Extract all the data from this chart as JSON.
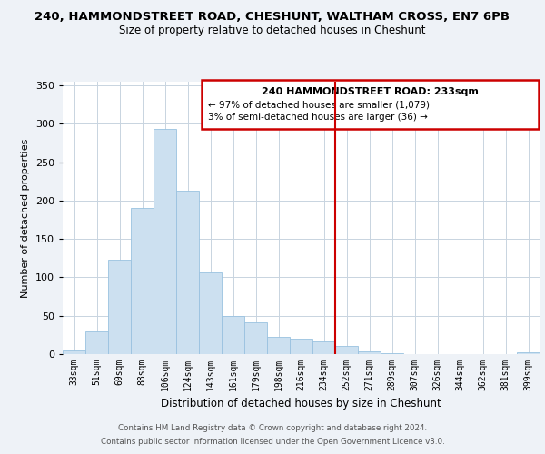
{
  "title": "240, HAMMONDSTREET ROAD, CHESHUNT, WALTHAM CROSS, EN7 6PB",
  "subtitle": "Size of property relative to detached houses in Cheshunt",
  "xlabel": "Distribution of detached houses by size in Cheshunt",
  "ylabel": "Number of detached properties",
  "bar_labels": [
    "33sqm",
    "51sqm",
    "69sqm",
    "88sqm",
    "106sqm",
    "124sqm",
    "143sqm",
    "161sqm",
    "179sqm",
    "198sqm",
    "216sqm",
    "234sqm",
    "252sqm",
    "271sqm",
    "289sqm",
    "307sqm",
    "326sqm",
    "344sqm",
    "362sqm",
    "381sqm",
    "399sqm"
  ],
  "bar_values": [
    5,
    29,
    123,
    190,
    293,
    213,
    106,
    50,
    42,
    23,
    20,
    16,
    11,
    3,
    1,
    0,
    0,
    0,
    0,
    0,
    2
  ],
  "bar_color": "#cce0f0",
  "bar_edge_color": "#99c2e0",
  "vline_x": 11.5,
  "vline_color": "#cc0000",
  "ylim": [
    0,
    355
  ],
  "yticks": [
    0,
    50,
    100,
    150,
    200,
    250,
    300,
    350
  ],
  "annotation_title": "240 HAMMONDSTREET ROAD: 233sqm",
  "annotation_line1": "← 97% of detached houses are smaller (1,079)",
  "annotation_line2": "3% of semi-detached houses are larger (36) →",
  "footer1": "Contains HM Land Registry data © Crown copyright and database right 2024.",
  "footer2": "Contains public sector information licensed under the Open Government Licence v3.0.",
  "background_color": "#eef2f7",
  "plot_background": "#ffffff",
  "grid_color": "#c8d4e0"
}
